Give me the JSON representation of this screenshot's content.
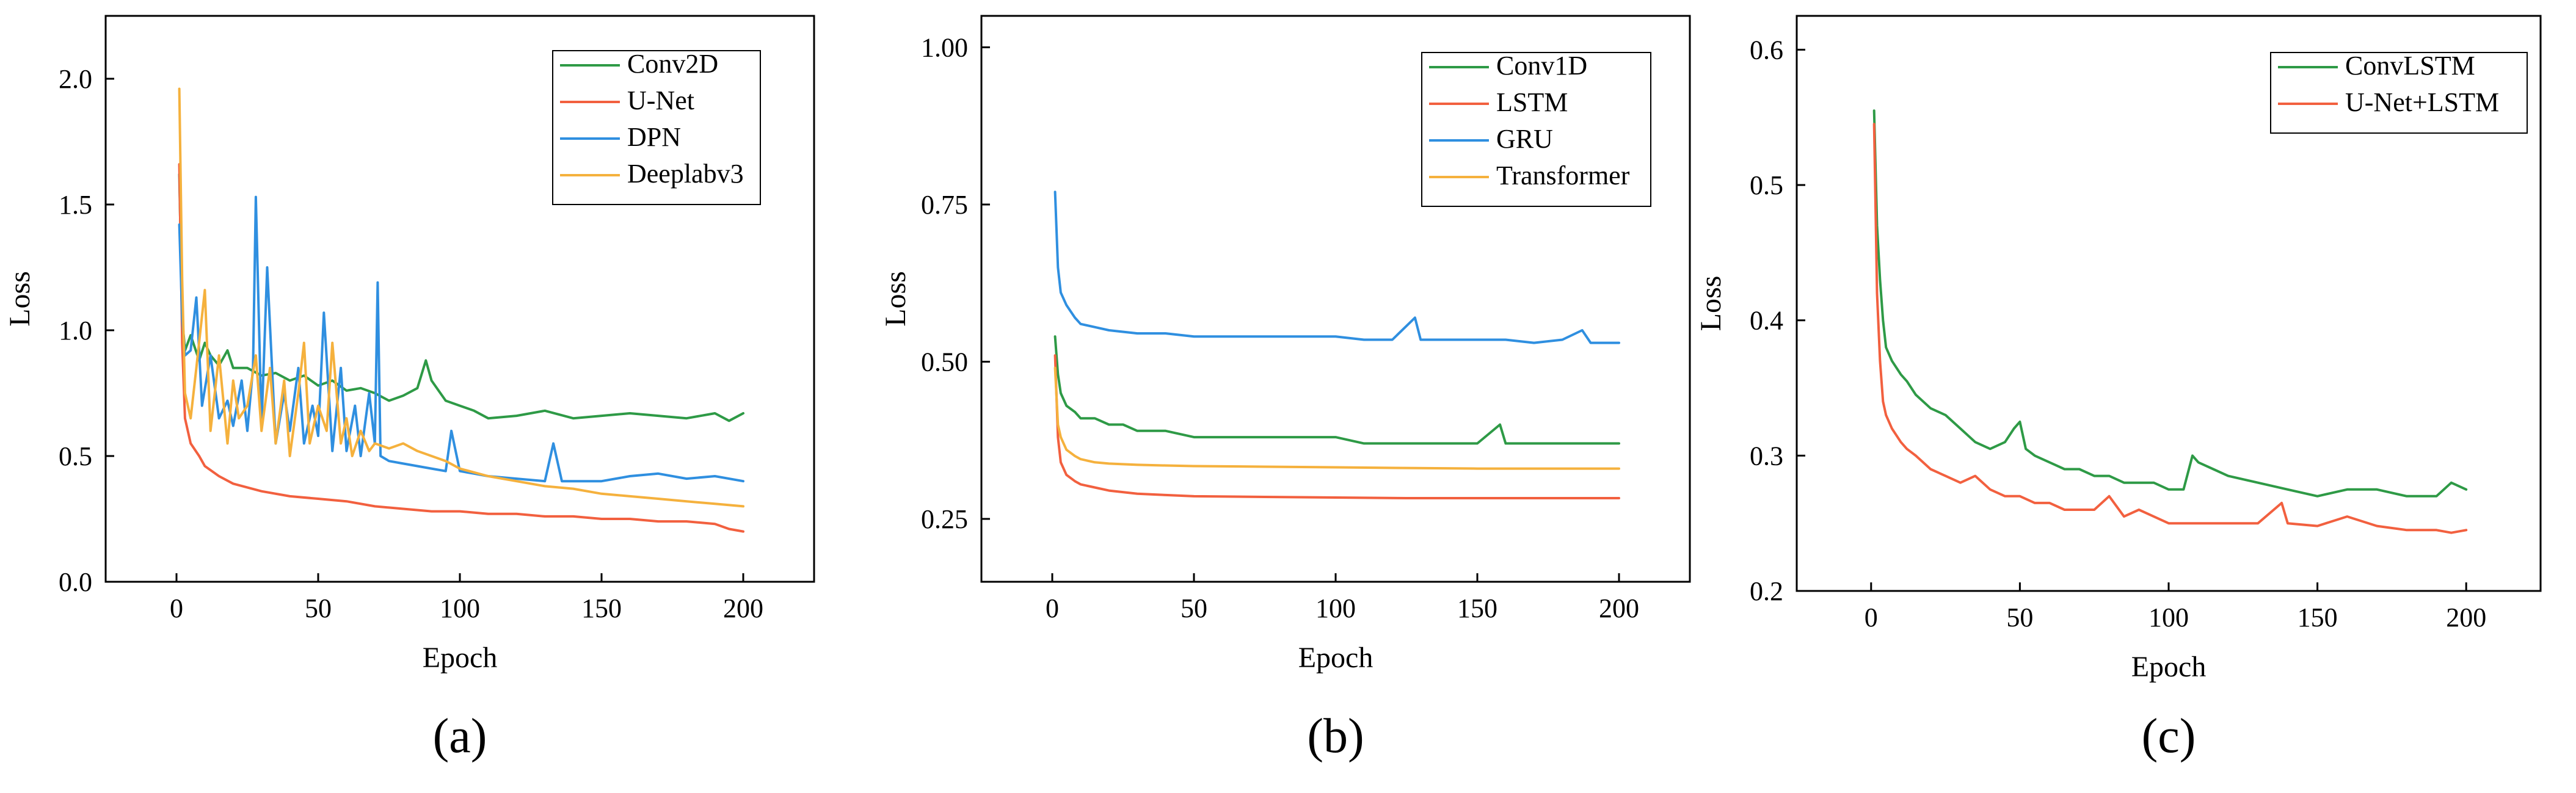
{
  "chart_data": [
    {
      "type": "line",
      "caption": "(a)",
      "xlabel": "Epoch",
      "ylabel": "Loss",
      "xlim": [
        -25,
        225
      ],
      "ylim": [
        0.0,
        2.25
      ],
      "xticks": [
        0,
        50,
        100,
        150,
        200
      ],
      "yticks": [
        0.0,
        0.5,
        1.0,
        1.5,
        2.0
      ],
      "xtick_labels": [
        "0",
        "50",
        "100",
        "150",
        "200"
      ],
      "ytick_labels": [
        "0.0",
        "0.5",
        "1.0",
        "1.5",
        "2.0"
      ],
      "legend_position": "top-right",
      "series": [
        {
          "name": "Conv2D",
          "color": "#2e9a46",
          "x": [
            1,
            2,
            3,
            5,
            8,
            10,
            12,
            15,
            18,
            20,
            25,
            30,
            35,
            40,
            45,
            50,
            55,
            60,
            65,
            70,
            75,
            80,
            85,
            88,
            90,
            95,
            100,
            105,
            110,
            120,
            130,
            140,
            150,
            160,
            170,
            180,
            190,
            195,
            200
          ],
          "values": [
            1.62,
            1.05,
            0.92,
            0.98,
            0.88,
            0.95,
            0.9,
            0.86,
            0.92,
            0.85,
            0.85,
            0.82,
            0.83,
            0.8,
            0.82,
            0.78,
            0.8,
            0.76,
            0.77,
            0.75,
            0.72,
            0.74,
            0.77,
            0.88,
            0.8,
            0.72,
            0.7,
            0.68,
            0.65,
            0.66,
            0.68,
            0.65,
            0.66,
            0.67,
            0.66,
            0.65,
            0.67,
            0.64,
            0.67
          ]
        },
        {
          "name": "U-Net",
          "color": "#f2603f",
          "x": [
            1,
            2,
            3,
            5,
            8,
            10,
            15,
            20,
            30,
            40,
            50,
            60,
            70,
            80,
            90,
            100,
            110,
            120,
            130,
            140,
            150,
            160,
            170,
            180,
            190,
            195,
            200
          ],
          "values": [
            1.66,
            0.95,
            0.65,
            0.55,
            0.5,
            0.46,
            0.42,
            0.39,
            0.36,
            0.34,
            0.33,
            0.32,
            0.3,
            0.29,
            0.28,
            0.28,
            0.27,
            0.27,
            0.26,
            0.26,
            0.25,
            0.25,
            0.24,
            0.24,
            0.23,
            0.21,
            0.2
          ]
        },
        {
          "name": "DPN",
          "color": "#2f8fe0",
          "x": [
            1,
            2,
            3,
            5,
            7,
            9,
            12,
            15,
            18,
            20,
            23,
            25,
            27,
            28,
            30,
            32,
            35,
            38,
            40,
            43,
            45,
            48,
            50,
            52,
            55,
            58,
            60,
            63,
            65,
            68,
            70,
            71,
            72,
            75,
            80,
            85,
            90,
            95,
            97,
            100,
            105,
            110,
            120,
            130,
            133,
            136,
            140,
            150,
            160,
            170,
            180,
            190,
            200
          ],
          "values": [
            1.42,
            1.05,
            0.9,
            0.92,
            1.13,
            0.7,
            0.9,
            0.65,
            0.72,
            0.62,
            0.8,
            0.6,
            0.85,
            1.53,
            0.62,
            1.25,
            0.55,
            0.75,
            0.6,
            0.85,
            0.55,
            0.7,
            0.58,
            1.07,
            0.52,
            0.85,
            0.52,
            0.7,
            0.5,
            0.75,
            0.55,
            1.19,
            0.5,
            0.48,
            0.47,
            0.46,
            0.45,
            0.44,
            0.6,
            0.44,
            0.43,
            0.42,
            0.41,
            0.4,
            0.55,
            0.4,
            0.4,
            0.4,
            0.42,
            0.43,
            0.41,
            0.42,
            0.4
          ]
        },
        {
          "name": "Deeplabv3",
          "color": "#f5b13d",
          "x": [
            1,
            2,
            3,
            5,
            7,
            10,
            12,
            15,
            18,
            20,
            22,
            25,
            28,
            30,
            33,
            35,
            38,
            40,
            43,
            45,
            47,
            50,
            53,
            55,
            58,
            60,
            62,
            65,
            68,
            70,
            75,
            80,
            85,
            90,
            95,
            100,
            110,
            120,
            130,
            140,
            150,
            160,
            170,
            180,
            190,
            200
          ],
          "values": [
            1.96,
            1.2,
            0.75,
            0.65,
            0.85,
            1.16,
            0.6,
            0.9,
            0.55,
            0.8,
            0.65,
            0.7,
            0.9,
            0.6,
            0.85,
            0.55,
            0.8,
            0.5,
            0.75,
            0.95,
            0.55,
            0.7,
            0.6,
            0.95,
            0.55,
            0.65,
            0.5,
            0.6,
            0.52,
            0.55,
            0.53,
            0.55,
            0.52,
            0.5,
            0.48,
            0.45,
            0.42,
            0.4,
            0.38,
            0.37,
            0.35,
            0.34,
            0.33,
            0.32,
            0.31,
            0.3
          ]
        }
      ]
    },
    {
      "type": "line",
      "caption": "(b)",
      "xlabel": "Epoch",
      "ylabel": "Loss",
      "xlim": [
        -25,
        225
      ],
      "ylim": [
        0.15,
        1.05
      ],
      "xticks": [
        0,
        50,
        100,
        150,
        200
      ],
      "yticks": [
        0.25,
        0.5,
        0.75,
        1.0
      ],
      "xtick_labels": [
        "0",
        "50",
        "100",
        "150",
        "200"
      ],
      "ytick_labels": [
        "0.25",
        "0.50",
        "0.75",
        "1.00"
      ],
      "legend_position": "top-right",
      "series": [
        {
          "name": "Conv1D",
          "color": "#2e9a46",
          "x": [
            1,
            2,
            3,
            5,
            8,
            10,
            15,
            20,
            25,
            30,
            40,
            50,
            60,
            70,
            80,
            90,
            100,
            110,
            120,
            130,
            140,
            150,
            158,
            160,
            170,
            180,
            190,
            200
          ],
          "values": [
            0.54,
            0.48,
            0.45,
            0.43,
            0.42,
            0.41,
            0.41,
            0.4,
            0.4,
            0.39,
            0.39,
            0.38,
            0.38,
            0.38,
            0.38,
            0.38,
            0.38,
            0.37,
            0.37,
            0.37,
            0.37,
            0.37,
            0.4,
            0.37,
            0.37,
            0.37,
            0.37,
            0.37
          ]
        },
        {
          "name": "LSTM",
          "color": "#f2603f",
          "x": [
            1,
            2,
            3,
            5,
            8,
            10,
            15,
            20,
            30,
            40,
            50,
            75,
            100,
            125,
            150,
            175,
            200
          ],
          "values": [
            0.51,
            0.38,
            0.34,
            0.32,
            0.31,
            0.305,
            0.3,
            0.295,
            0.29,
            0.288,
            0.286,
            0.285,
            0.284,
            0.283,
            0.283,
            0.283,
            0.283
          ]
        },
        {
          "name": "GRU",
          "color": "#2f8fe0",
          "x": [
            1,
            2,
            3,
            5,
            8,
            10,
            15,
            20,
            30,
            40,
            50,
            60,
            70,
            80,
            90,
            100,
            110,
            120,
            128,
            130,
            140,
            150,
            160,
            170,
            180,
            187,
            190,
            200
          ],
          "values": [
            0.77,
            0.65,
            0.61,
            0.59,
            0.57,
            0.56,
            0.555,
            0.55,
            0.545,
            0.545,
            0.54,
            0.54,
            0.54,
            0.54,
            0.54,
            0.54,
            0.535,
            0.535,
            0.57,
            0.535,
            0.535,
            0.535,
            0.535,
            0.53,
            0.535,
            0.55,
            0.53,
            0.53
          ]
        },
        {
          "name": "Transformer",
          "color": "#f5b13d",
          "x": [
            1,
            2,
            3,
            5,
            8,
            10,
            15,
            20,
            30,
            40,
            50,
            75,
            100,
            125,
            150,
            175,
            200
          ],
          "values": [
            0.49,
            0.4,
            0.38,
            0.36,
            0.35,
            0.345,
            0.34,
            0.338,
            0.336,
            0.335,
            0.334,
            0.333,
            0.332,
            0.331,
            0.33,
            0.33,
            0.33
          ]
        }
      ]
    },
    {
      "type": "line",
      "caption": "(c)",
      "xlabel": "Epoch",
      "ylabel": "Loss",
      "xlim": [
        -25,
        225
      ],
      "ylim": [
        0.2,
        0.625
      ],
      "xticks": [
        0,
        50,
        100,
        150,
        200
      ],
      "yticks": [
        0.2,
        0.3,
        0.4,
        0.5,
        0.6
      ],
      "xtick_labels": [
        "0",
        "50",
        "100",
        "150",
        "200"
      ],
      "ytick_labels": [
        "0.2",
        "0.3",
        "0.4",
        "0.5",
        "0.6"
      ],
      "legend_position": "top-right",
      "series": [
        {
          "name": "ConvLSTM",
          "color": "#2e9a46",
          "x": [
            1,
            2,
            3,
            4,
            5,
            7,
            10,
            12,
            15,
            20,
            25,
            30,
            35,
            40,
            45,
            48,
            50,
            52,
            55,
            60,
            65,
            70,
            75,
            80,
            85,
            90,
            95,
            100,
            105,
            108,
            110,
            115,
            120,
            130,
            140,
            150,
            160,
            170,
            180,
            190,
            195,
            200
          ],
          "values": [
            0.555,
            0.47,
            0.43,
            0.4,
            0.38,
            0.37,
            0.36,
            0.355,
            0.345,
            0.335,
            0.33,
            0.32,
            0.31,
            0.305,
            0.31,
            0.32,
            0.325,
            0.305,
            0.3,
            0.295,
            0.29,
            0.29,
            0.285,
            0.285,
            0.28,
            0.28,
            0.28,
            0.275,
            0.275,
            0.3,
            0.295,
            0.29,
            0.285,
            0.28,
            0.275,
            0.27,
            0.275,
            0.275,
            0.27,
            0.27,
            0.28,
            0.275
          ]
        },
        {
          "name": "U-Net+LSTM",
          "color": "#f2603f",
          "x": [
            1,
            2,
            3,
            4,
            5,
            7,
            10,
            12,
            15,
            20,
            25,
            30,
            35,
            40,
            45,
            50,
            55,
            60,
            65,
            70,
            75,
            80,
            85,
            90,
            95,
            100,
            110,
            120,
            130,
            138,
            140,
            150,
            160,
            170,
            180,
            190,
            195,
            200
          ],
          "values": [
            0.545,
            0.42,
            0.37,
            0.34,
            0.33,
            0.32,
            0.31,
            0.305,
            0.3,
            0.29,
            0.285,
            0.28,
            0.285,
            0.275,
            0.27,
            0.27,
            0.265,
            0.265,
            0.26,
            0.26,
            0.26,
            0.27,
            0.255,
            0.26,
            0.255,
            0.25,
            0.25,
            0.25,
            0.25,
            0.265,
            0.25,
            0.248,
            0.255,
            0.248,
            0.245,
            0.245,
            0.243,
            0.245
          ]
        }
      ]
    }
  ]
}
